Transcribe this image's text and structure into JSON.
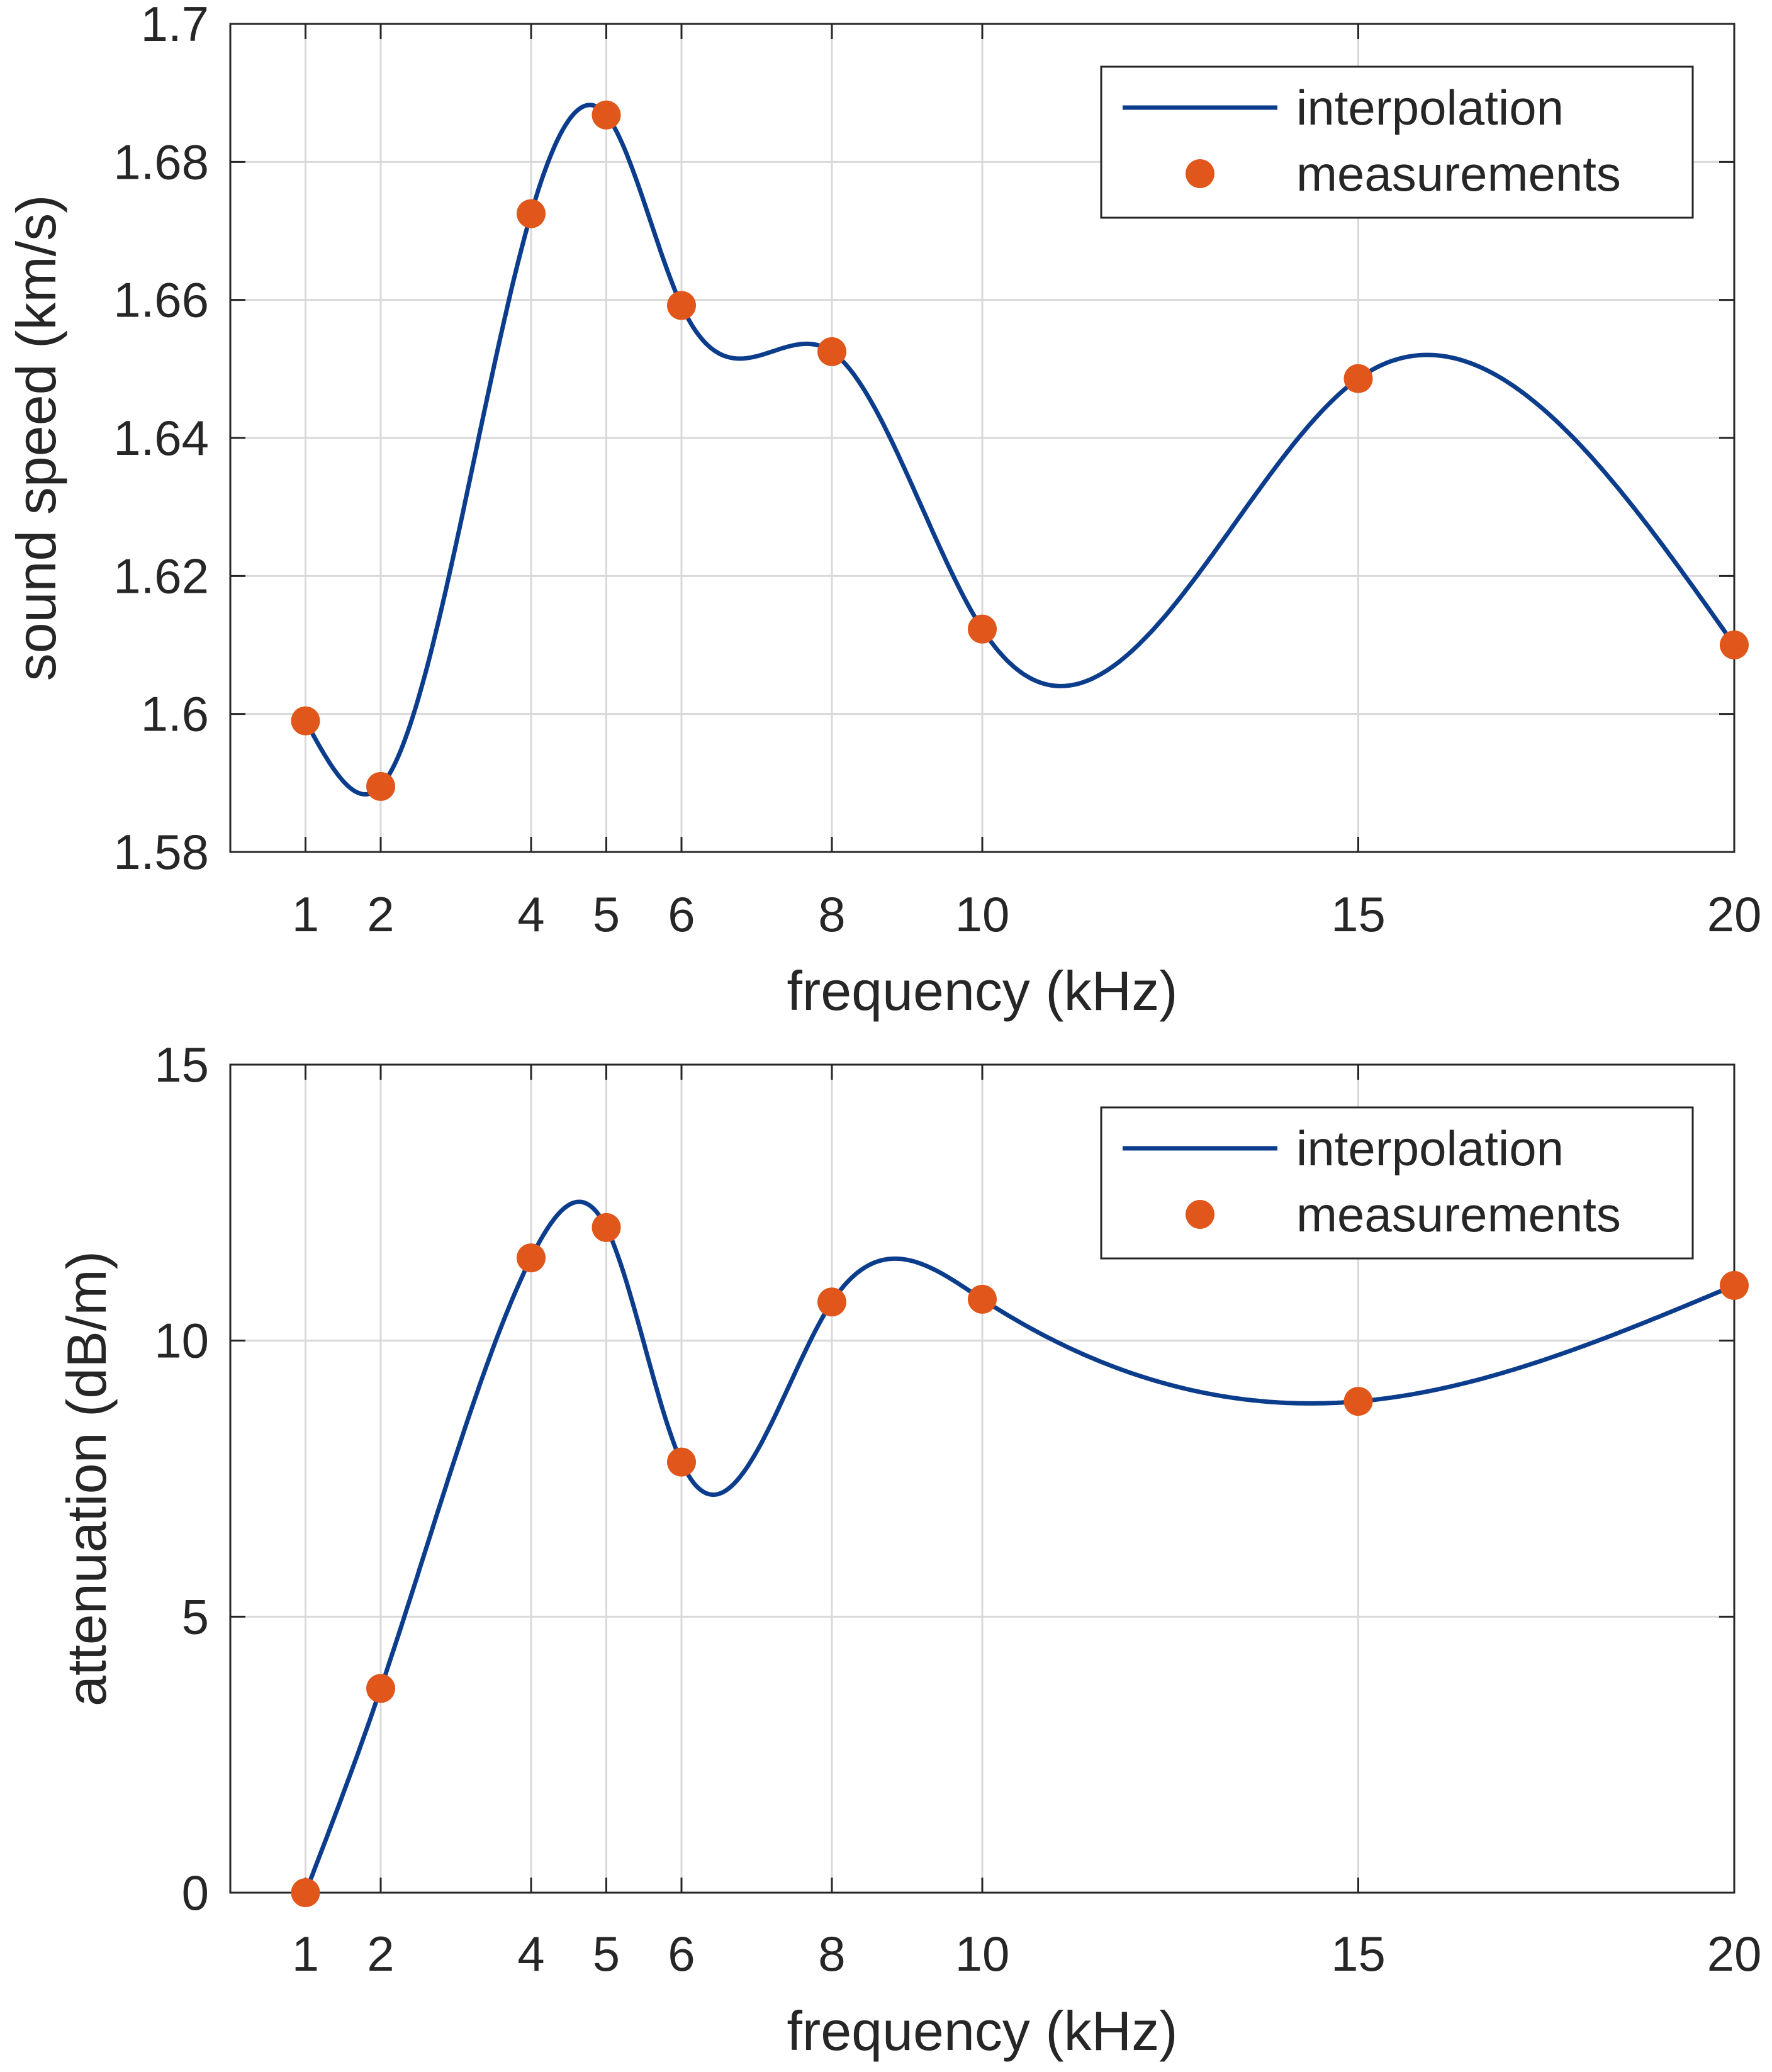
{
  "colors": {
    "line": "#0b3d8c",
    "marker": "#e0561b",
    "grid": "#d9d9d9",
    "axis": "#262626",
    "text": "#262626"
  },
  "chart_data": [
    {
      "type": "line",
      "x_scale": "linear",
      "xlim": [
        0,
        20
      ],
      "ylim": [
        1.58,
        1.7
      ],
      "xlabel": "frequency (kHz)",
      "ylabel": "sound speed (km/s)",
      "x_ticks": [
        1,
        2,
        4,
        5,
        6,
        8,
        10,
        15,
        20
      ],
      "x_tick_labels": [
        "1",
        "2",
        "4",
        "5",
        "6",
        "8",
        "10",
        "15",
        "20"
      ],
      "y_ticks": [
        1.58,
        1.6,
        1.62,
        1.64,
        1.66,
        1.68,
        1.7
      ],
      "y_tick_labels": [
        "1.58",
        "1.6",
        "1.62",
        "1.64",
        "1.66",
        "1.68",
        "1.7"
      ],
      "grid": true,
      "legend": {
        "position": "top-right",
        "entries": [
          {
            "label": "interpolation",
            "style": "line"
          },
          {
            "label": "measurements",
            "style": "marker"
          }
        ]
      },
      "series": [
        {
          "name": "interpolation",
          "kind": "line",
          "x": [
            1,
            2,
            4,
            5,
            6,
            8,
            10,
            15,
            20
          ],
          "y": [
            1.599,
            1.5895,
            1.6725,
            1.6868,
            1.6592,
            1.6525,
            1.6123,
            1.6486,
            1.61
          ]
        },
        {
          "name": "measurements",
          "kind": "scatter",
          "x": [
            1,
            2,
            4,
            5,
            6,
            8,
            10,
            15,
            20
          ],
          "y": [
            1.599,
            1.5895,
            1.6725,
            1.6868,
            1.6592,
            1.6525,
            1.6123,
            1.6486,
            1.61
          ]
        }
      ]
    },
    {
      "type": "line",
      "x_scale": "linear",
      "xlim": [
        0,
        20
      ],
      "ylim": [
        0,
        15
      ],
      "xlabel": "frequency (kHz)",
      "ylabel": "attenuation (dB/m)",
      "x_ticks": [
        1,
        2,
        4,
        5,
        6,
        8,
        10,
        15,
        20
      ],
      "x_tick_labels": [
        "1",
        "2",
        "4",
        "5",
        "6",
        "8",
        "10",
        "15",
        "20"
      ],
      "y_ticks": [
        0,
        5,
        10,
        15
      ],
      "y_tick_labels": [
        "0",
        "5",
        "10",
        "15"
      ],
      "grid": true,
      "legend": {
        "position": "top-right",
        "entries": [
          {
            "label": "interpolation",
            "style": "line"
          },
          {
            "label": "measurements",
            "style": "marker"
          }
        ]
      },
      "series": [
        {
          "name": "interpolation",
          "kind": "line",
          "x": [
            1,
            2,
            4,
            5,
            6,
            8,
            10,
            15,
            20
          ],
          "y": [
            0,
            3.7,
            11.5,
            12.05,
            7.8,
            10.7,
            10.75,
            8.9,
            11
          ]
        },
        {
          "name": "measurements",
          "kind": "scatter",
          "x": [
            1,
            2,
            4,
            5,
            6,
            8,
            10,
            15,
            20
          ],
          "y": [
            0,
            3.7,
            11.5,
            12.05,
            7.8,
            10.7,
            10.75,
            8.9,
            11
          ]
        }
      ]
    }
  ]
}
